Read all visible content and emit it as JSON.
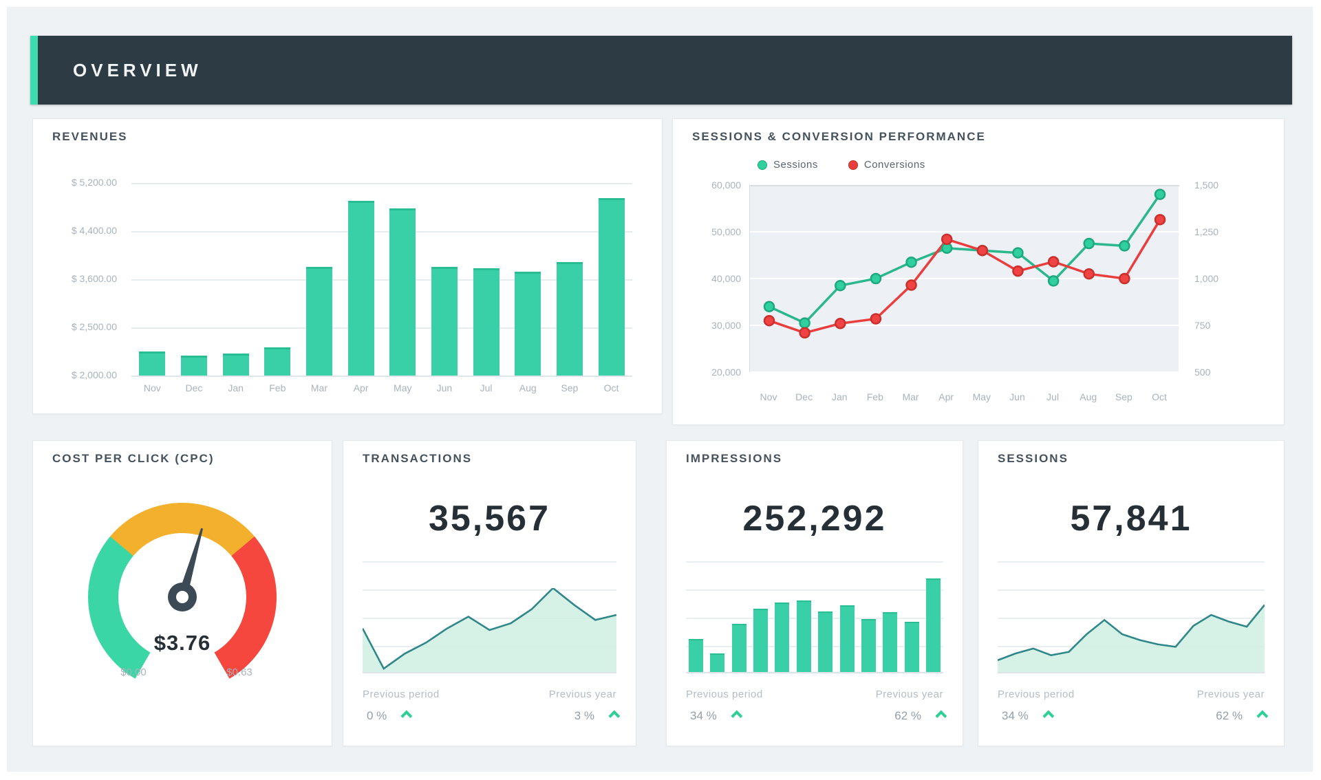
{
  "header": {
    "title": "OVERVIEW"
  },
  "colors": {
    "accent": "#3ddbb0",
    "header_bg": "#2d3b45",
    "bar_teal": "#3ad0a7",
    "sessions_green": "#2fcf9f",
    "conversions_red": "#ea3d3d",
    "spark_teal": "#2f8789",
    "spark_fill": "#cfeee2",
    "caret_green": "#2fcf96",
    "gauge_green": "#3bd6a5",
    "gauge_yellow": "#f3b02c",
    "gauge_red": "#f5473e"
  },
  "revenues": {
    "title": "REVENUES",
    "chart_data": {
      "type": "bar",
      "y_tick_labels": [
        "$ 5,200.00",
        "$ 4,400.00",
        "$ 3,600.00",
        "$ 2,500.00",
        "$ 2,000.00"
      ],
      "categories": [
        "Nov",
        "Dec",
        "Jan",
        "Feb",
        "Mar",
        "Apr",
        "May",
        "Jun",
        "Jul",
        "Aug",
        "Sep",
        "Oct"
      ],
      "values": [
        2400,
        2330,
        2360,
        2470,
        3800,
        4900,
        4780,
        3810,
        3780,
        3730,
        3890,
        4950
      ],
      "axis_min": 2000,
      "axis_max": 5200
    }
  },
  "performance": {
    "title": "SESSIONS & CONVERSION PERFORMANCE",
    "legend": [
      {
        "label": "Sessions"
      },
      {
        "label": "Conversions"
      }
    ],
    "chart_data": {
      "type": "line",
      "left_axis_labels": [
        "60,000",
        "50,000",
        "40,000",
        "30,000",
        "20,000"
      ],
      "right_axis_labels": [
        "1,500",
        "1,250",
        "1,000",
        "750",
        "500"
      ],
      "categories": [
        "Nov",
        "Dec",
        "Jan",
        "Feb",
        "Mar",
        "Apr",
        "May",
        "Jun",
        "Jul",
        "Aug",
        "Sep",
        "Oct"
      ],
      "series": [
        {
          "name": "Sessions",
          "axis": "left",
          "values": [
            34000,
            30500,
            38500,
            40000,
            43500,
            46500,
            46000,
            45500,
            39500,
            47500,
            47000,
            58000
          ]
        },
        {
          "name": "Conversions",
          "axis": "right",
          "values": [
            775,
            710,
            760,
            785,
            965,
            1210,
            1150,
            1040,
            1090,
            1025,
            1000,
            1315
          ]
        }
      ],
      "left_min": 20000,
      "left_max": 60000,
      "right_min": 500,
      "right_max": 1500
    }
  },
  "cpc": {
    "title": "COST PER CLICK (CPC)",
    "value": "$3.76",
    "min_label": "$0.00",
    "max_label": "$0.63",
    "needle_angle_deg": 16
  },
  "transactions": {
    "title": "TRANSACTIONS",
    "value": "35,567",
    "chart_data": {
      "type": "area",
      "values_pct": [
        52,
        4,
        22,
        35,
        52,
        66,
        50,
        58,
        75,
        100,
        80,
        62,
        68
      ]
    },
    "footer": {
      "left_label": "Previous period",
      "left_value": "0 %",
      "right_label": "Previous year",
      "right_value": "3 %"
    }
  },
  "impressions": {
    "title": "IMPRESSIONS",
    "value": "252,292",
    "chart_data": {
      "type": "bar",
      "values_pct": [
        34,
        19,
        50,
        66,
        72,
        74,
        63,
        69,
        55,
        62,
        52,
        97
      ]
    },
    "footer": {
      "left_label": "Previous period",
      "left_value": "34 %",
      "right_label": "Previous year",
      "right_value": "62 %"
    }
  },
  "sessions_card": {
    "title": "SESSIONS",
    "value": "57,841",
    "chart_data": {
      "type": "area",
      "values_pct": [
        14,
        22,
        28,
        20,
        24,
        45,
        62,
        45,
        38,
        33,
        30,
        55,
        68,
        60,
        54,
        80
      ]
    },
    "footer": {
      "left_label": "Previous period",
      "left_value": "34 %",
      "right_label": "Previous year",
      "right_value": "62 %"
    }
  }
}
